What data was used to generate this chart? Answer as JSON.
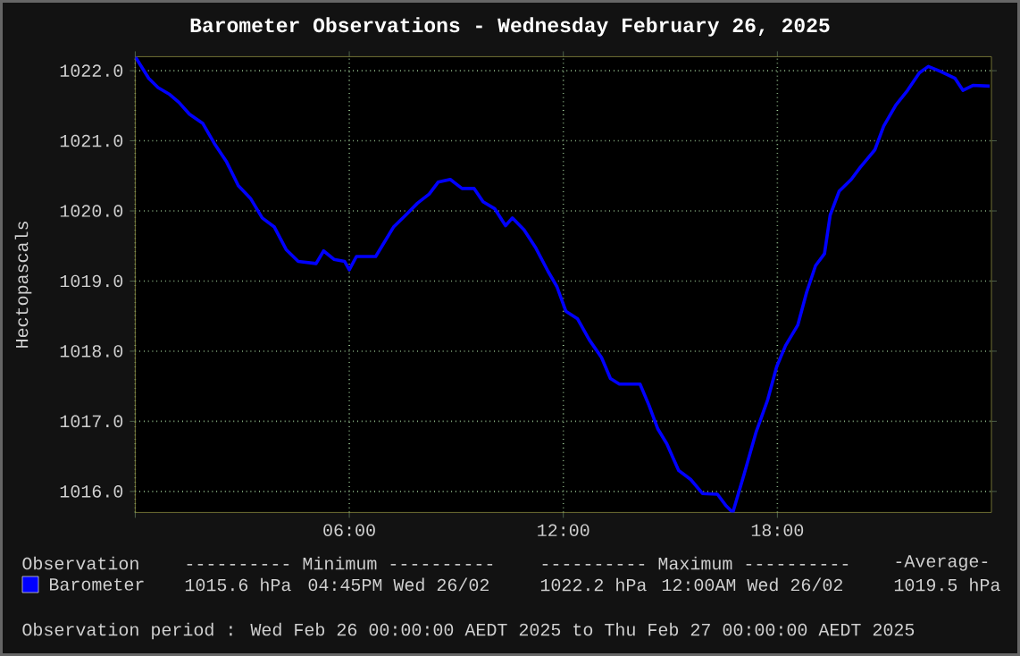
{
  "chart_data": {
    "type": "line",
    "title": "Barometer Observations - Wednesday February 26, 2025",
    "ylabel": "Hectopascals",
    "xlim": [
      0,
      24
    ],
    "ylim": [
      1015.7,
      1022.2
    ],
    "xticks": [
      {
        "value": 0,
        "label": null
      },
      {
        "value": 6,
        "label": "06:00"
      },
      {
        "value": 12,
        "label": "12:00"
      },
      {
        "value": 18,
        "label": "18:00"
      }
    ],
    "yticks": [
      {
        "value": 1016,
        "label": "1016.0"
      },
      {
        "value": 1017,
        "label": "1017.0"
      },
      {
        "value": 1018,
        "label": "1018.0"
      },
      {
        "value": 1019,
        "label": "1019.0"
      },
      {
        "value": 1020,
        "label": "1020.0"
      },
      {
        "value": 1021,
        "label": "1021.0"
      },
      {
        "value": 1022,
        "label": "1022.0"
      }
    ],
    "grid": true,
    "legend": "bottom",
    "series": [
      {
        "name": "Barometer",
        "color": "#0000ff",
        "x": [
          0,
          0.38,
          0.64,
          0.97,
          1.22,
          1.52,
          1.89,
          2.22,
          2.56,
          2.89,
          3.23,
          3.56,
          3.9,
          4.23,
          4.57,
          5.07,
          5.28,
          5.57,
          5.87,
          6.0,
          6.2,
          6.74,
          6.99,
          7.24,
          7.58,
          7.91,
          8.24,
          8.49,
          8.83,
          9.16,
          9.5,
          9.75,
          10.08,
          10.38,
          10.57,
          10.9,
          11.23,
          11.57,
          11.82,
          12.07,
          12.4,
          12.73,
          13.07,
          13.32,
          13.57,
          14.15,
          14.4,
          14.65,
          14.9,
          15.23,
          15.57,
          15.9,
          16.32,
          16.57,
          16.75,
          17.07,
          17.4,
          17.73,
          17.98,
          18.23,
          18.57,
          18.82,
          19.07,
          19.32,
          19.48,
          19.73,
          20.07,
          20.32,
          20.73,
          20.98,
          21.32,
          21.65,
          21.98,
          22.23,
          22.57,
          22.98,
          23.2,
          23.48,
          23.95
        ],
        "values": [
          1022.2,
          1021.89,
          1021.76,
          1021.66,
          1021.55,
          1021.38,
          1021.25,
          1020.96,
          1020.7,
          1020.36,
          1020.18,
          1019.9,
          1019.77,
          1019.45,
          1019.28,
          1019.25,
          1019.43,
          1019.31,
          1019.28,
          1019.16,
          1019.35,
          1019.35,
          1019.56,
          1019.77,
          1019.94,
          1020.11,
          1020.24,
          1020.41,
          1020.45,
          1020.32,
          1020.32,
          1020.13,
          1020.03,
          1019.79,
          1019.9,
          1019.73,
          1019.47,
          1019.14,
          1018.92,
          1018.57,
          1018.46,
          1018.16,
          1017.91,
          1017.61,
          1017.53,
          1017.53,
          1017.23,
          1016.89,
          1016.68,
          1016.3,
          1016.17,
          1015.97,
          1015.96,
          1015.79,
          1015.7,
          1016.25,
          1016.84,
          1017.31,
          1017.78,
          1018.08,
          1018.37,
          1018.84,
          1019.22,
          1019.39,
          1019.94,
          1020.28,
          1020.45,
          1020.62,
          1020.87,
          1021.21,
          1021.51,
          1021.72,
          1021.97,
          1022.06,
          1021.99,
          1021.89,
          1021.72,
          1021.79,
          1021.78
        ]
      }
    ],
    "annotations": [
      "Observation",
      "---------- Minimum ----------",
      "---------- Maximum ----------",
      "-Average-",
      "1015.6 hPa",
      "04:45PM Wed 26/02",
      "1022.2 hPa",
      "12:00AM Wed 26/02",
      "1019.5 hPa",
      "Observation period : Wed Feb 26 00:00:00 AEDT 2025 to Thu Feb 27 00:00:00 AEDT 2025"
    ]
  }
}
